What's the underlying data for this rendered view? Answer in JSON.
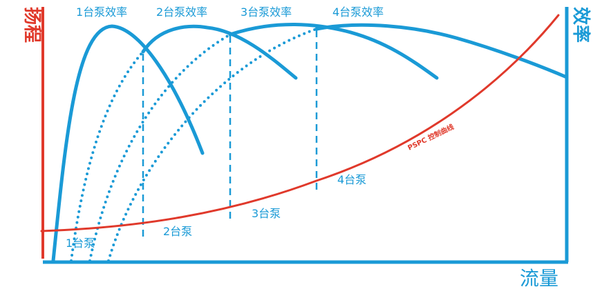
{
  "colors": {
    "axis_left": "#e0392b",
    "axis_other": "#1a9ad6",
    "curves": "#1a9ad6",
    "control_curve": "#e0392b"
  },
  "axes": {
    "y_left": "扬程",
    "y_right": "效率",
    "x": "流量"
  },
  "efficiency_curve_labels": [
    "1台泵效率",
    "2台泵效率",
    "3台泵效率",
    "4台泵效率"
  ],
  "stage_labels": [
    "1台泵",
    "2台泵",
    "3台泵",
    "4台泵"
  ],
  "control_curve_label": "PSPC 控制曲线"
}
